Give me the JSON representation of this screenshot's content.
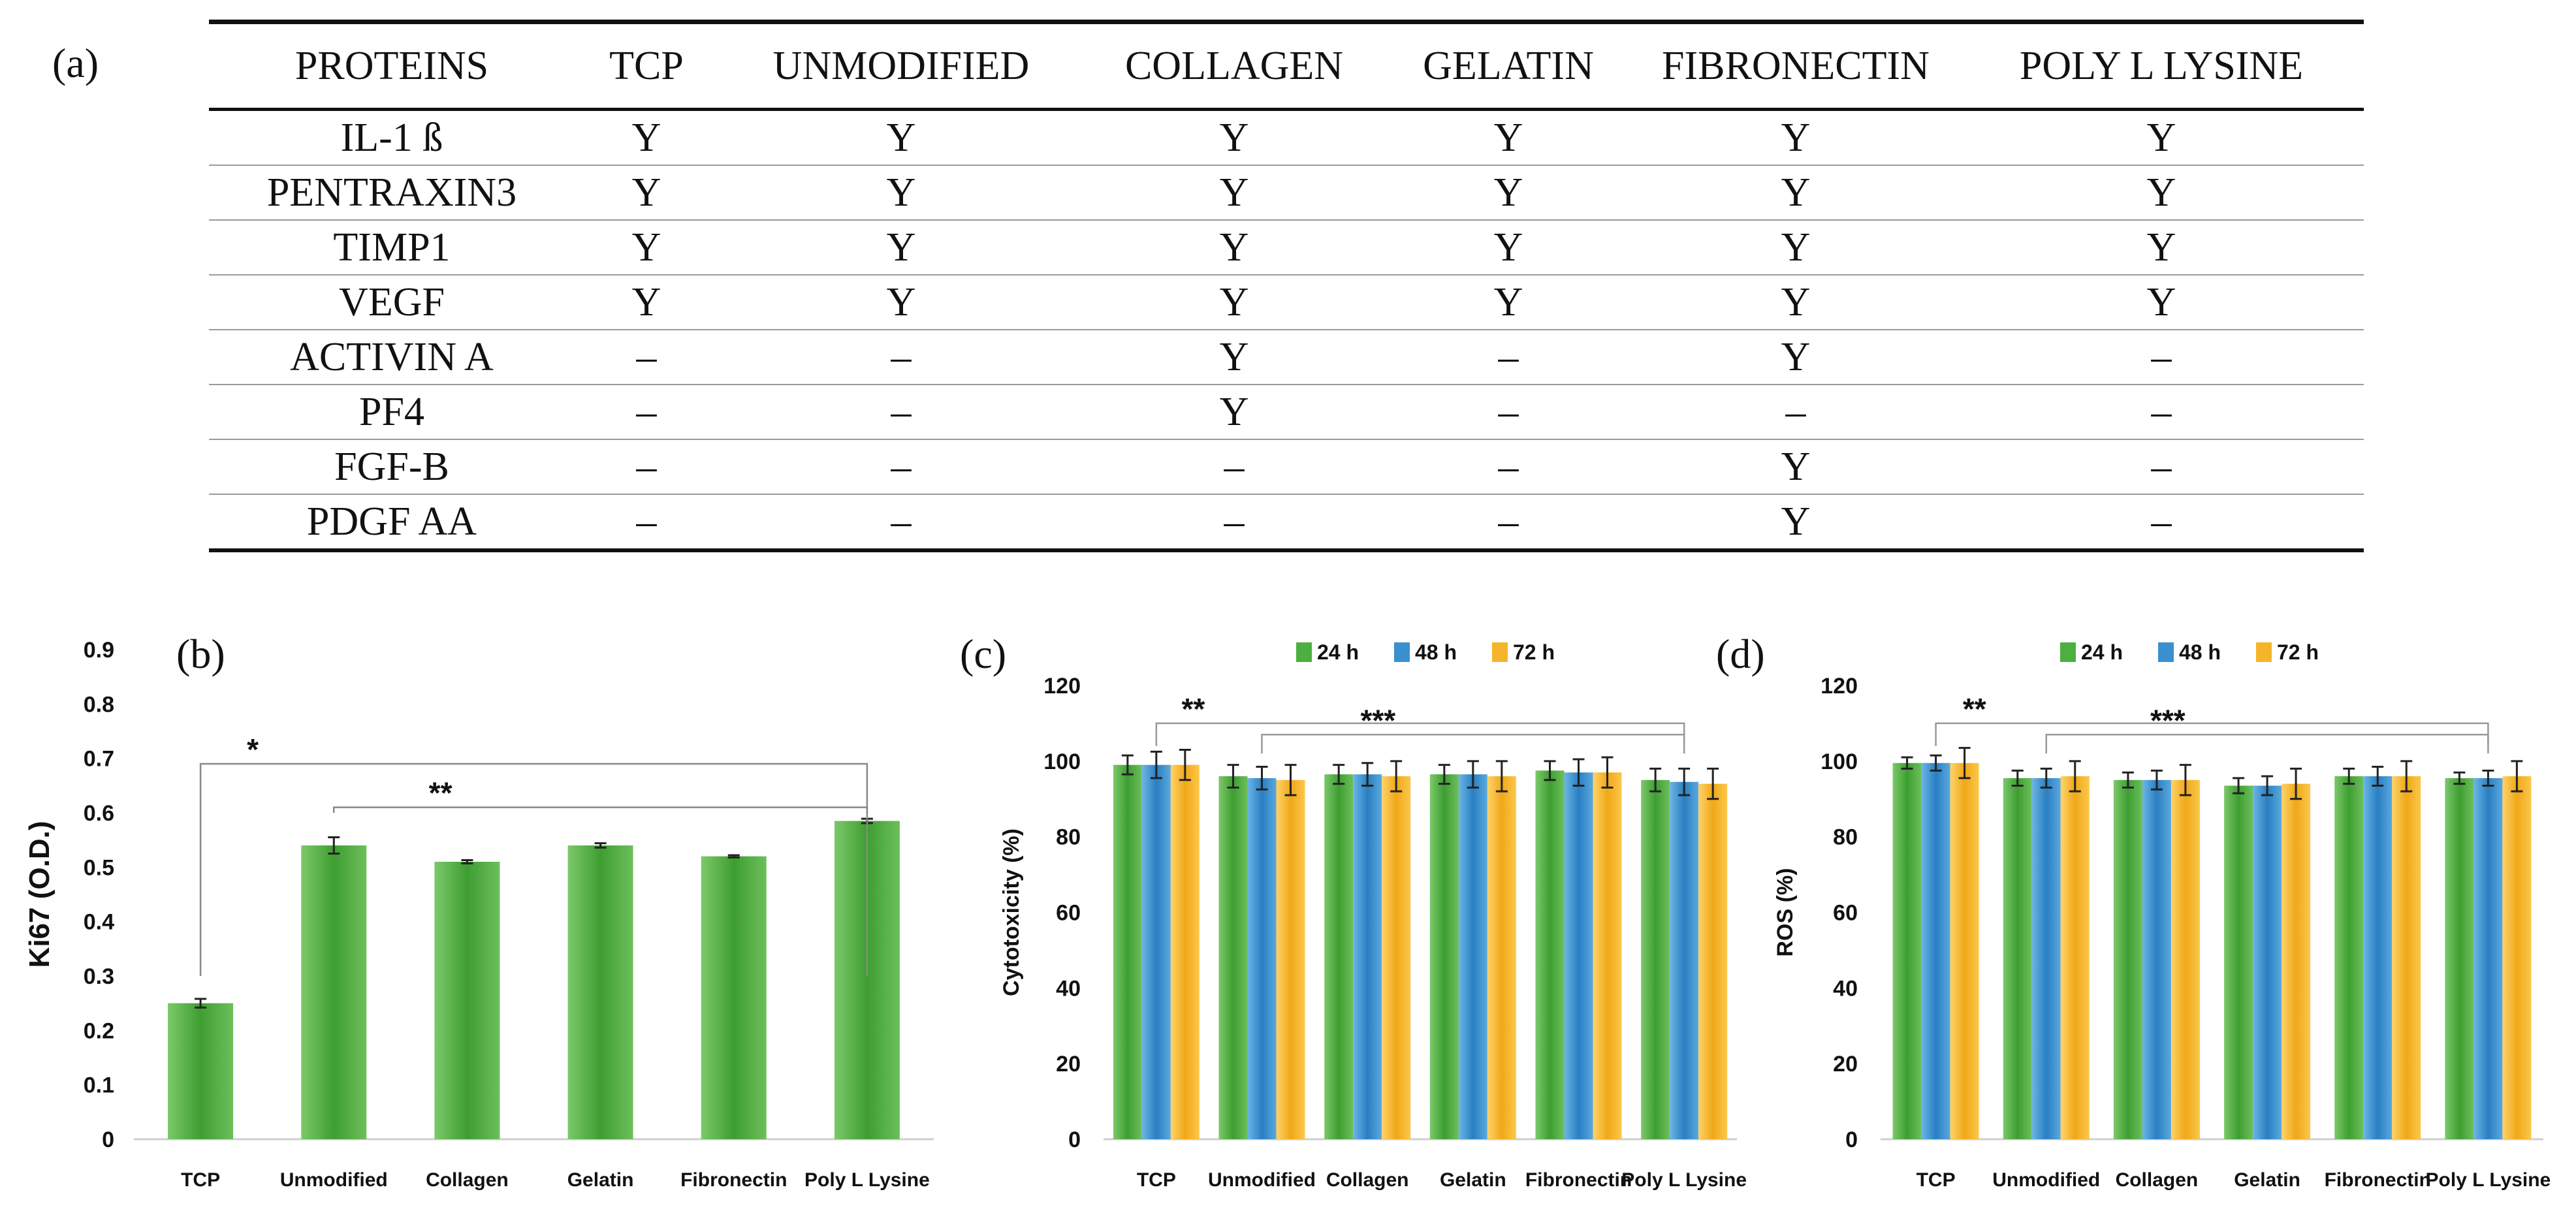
{
  "panel_labels": {
    "a": "(a)",
    "b": "(b)",
    "c": "(c)",
    "d": "(d)"
  },
  "table": {
    "headers": [
      "PROTEINS",
      "TCP",
      "UNMODIFIED",
      "COLLAGEN",
      "GELATIN",
      "FIBRONECTIN",
      "POLY L LYSINE"
    ],
    "rows": [
      [
        "IL-1 ß",
        "Y",
        "Y",
        "Y",
        "Y",
        "Y",
        "Y"
      ],
      [
        "PENTRAXIN3",
        "Y",
        "Y",
        "Y",
        "Y",
        "Y",
        "Y"
      ],
      [
        "TIMP1",
        "Y",
        "Y",
        "Y",
        "Y",
        "Y",
        "Y"
      ],
      [
        "VEGF",
        "Y",
        "Y",
        "Y",
        "Y",
        "Y",
        "Y"
      ],
      [
        "ACTIVIN A",
        "–",
        "–",
        "Y",
        "–",
        "Y",
        "–"
      ],
      [
        "PF4",
        "–",
        "–",
        "Y",
        "–",
        "–",
        "–"
      ],
      [
        "FGF-B",
        "–",
        "–",
        "–",
        "–",
        "Y",
        "–"
      ],
      [
        "PDGF AA",
        "–",
        "–",
        "–",
        "–",
        "Y",
        "–"
      ]
    ]
  },
  "colors": {
    "green": "#4caf3f",
    "blue": "#3a8fcf",
    "orange": "#f5b52a"
  },
  "chart_data": [
    {
      "id": "b",
      "type": "bar",
      "title": "",
      "xlabel": "",
      "ylabel": "Ki67 (O.D.)",
      "ylim": [
        0,
        0.9
      ],
      "yticks": [
        "0",
        "0.1",
        "0.2",
        "0.3",
        "0.4",
        "0.5",
        "0.6",
        "0.7",
        "0.8",
        "0.9"
      ],
      "categories": [
        "TCP",
        "Unmodified",
        "Collagen",
        "Gelatin",
        "Fibronectin",
        "Poly L Lysine"
      ],
      "series": [
        {
          "name": "Ki67",
          "color": "#4caf3f",
          "values": [
            0.25,
            0.54,
            0.51,
            0.54,
            0.52,
            0.585
          ],
          "errors": [
            0.008,
            0.015,
            0.003,
            0.004,
            0.002,
            0.004
          ]
        }
      ],
      "significance": [
        {
          "label": "*",
          "from": 0,
          "to": 5
        },
        {
          "label": "**",
          "from": 1,
          "to": 5
        }
      ]
    },
    {
      "id": "c",
      "type": "bar",
      "title": "",
      "xlabel": "",
      "ylabel": "Cytotoxicity (%)",
      "ylim": [
        0,
        120
      ],
      "yticks": [
        "0",
        "20",
        "40",
        "60",
        "80",
        "100",
        "120"
      ],
      "legend": [
        "24 h",
        "48 h",
        "72 h"
      ],
      "categories": [
        "TCP",
        "Unmodified",
        "Collagen",
        "Gelatin",
        "Fibronectin",
        "Poly L Lysine"
      ],
      "series": [
        {
          "name": "24 h",
          "color": "#4caf3f",
          "values": [
            99,
            96,
            96.5,
            96.5,
            97.5,
            95
          ],
          "errors": [
            2.5,
            3,
            2.5,
            2.5,
            2.5,
            3
          ]
        },
        {
          "name": "48 h",
          "color": "#3a8fcf",
          "values": [
            99,
            95.5,
            96.5,
            96.5,
            97,
            94.5
          ],
          "errors": [
            3.5,
            3,
            3,
            3.5,
            3.5,
            3.5
          ]
        },
        {
          "name": "72 h",
          "color": "#f5b52a",
          "values": [
            99,
            95,
            96,
            96,
            97,
            94
          ],
          "errors": [
            4,
            4,
            4,
            4,
            4,
            4
          ]
        }
      ],
      "significance": [
        {
          "label": "**",
          "from": 0,
          "to": 5
        },
        {
          "label": "***",
          "from": 1,
          "to": 5
        }
      ]
    },
    {
      "id": "d",
      "type": "bar",
      "title": "",
      "xlabel": "",
      "ylabel": "ROS (%)",
      "ylim": [
        0,
        120
      ],
      "yticks": [
        "0",
        "20",
        "40",
        "60",
        "80",
        "100",
        "120"
      ],
      "legend": [
        "24 h",
        "48 h",
        "72 h"
      ],
      "categories": [
        "TCP",
        "Unmodified",
        "Collagen",
        "Gelatin",
        "Fibronectin",
        "Poly L Lysine"
      ],
      "series": [
        {
          "name": "24 h",
          "color": "#4caf3f",
          "values": [
            99.5,
            95.5,
            95,
            93.5,
            96,
            95.5
          ],
          "errors": [
            1.5,
            2,
            2,
            2,
            2,
            1.5
          ]
        },
        {
          "name": "48 h",
          "color": "#3a8fcf",
          "values": [
            99.5,
            95.5,
            95,
            93.5,
            96,
            95.5
          ],
          "errors": [
            2,
            2.5,
            2.5,
            2.5,
            2.5,
            2
          ]
        },
        {
          "name": "72 h",
          "color": "#f5b52a",
          "values": [
            99.5,
            96,
            95,
            94,
            96,
            96
          ],
          "errors": [
            4,
            4,
            4,
            4,
            4,
            4
          ]
        }
      ],
      "significance": [
        {
          "label": "**",
          "from": 0,
          "to": 5
        },
        {
          "label": "***",
          "from": 1,
          "to": 5
        }
      ]
    }
  ]
}
